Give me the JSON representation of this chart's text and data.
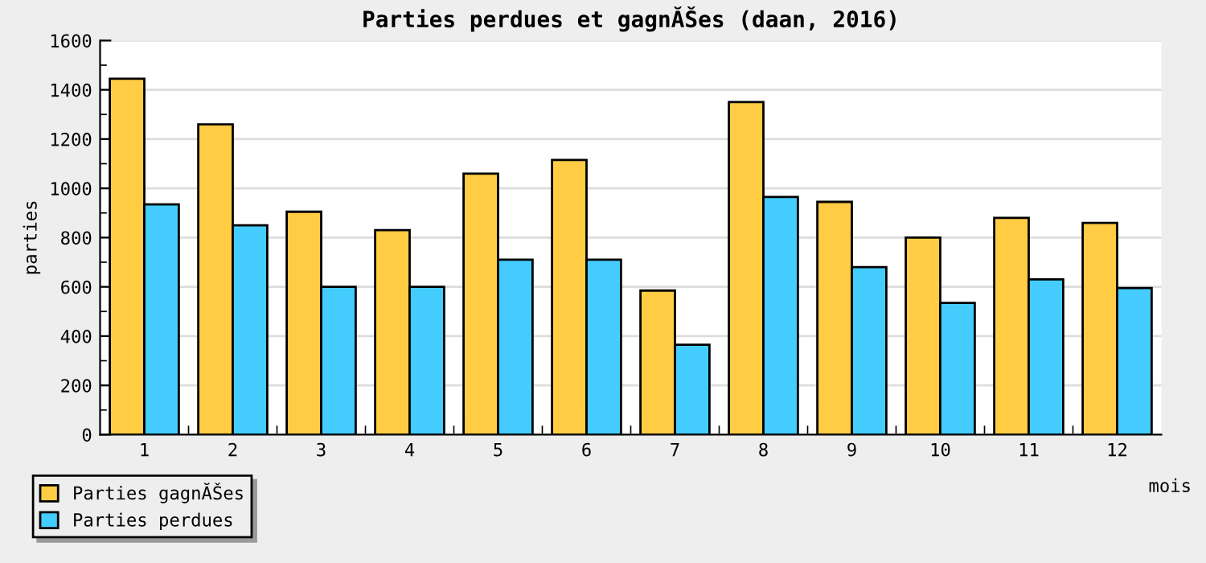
{
  "chart_data": {
    "type": "bar",
    "title": "Parties perdues et gagnĂŠes (daan, 2016)",
    "xlabel": "mois",
    "ylabel": "parties",
    "categories": [
      "1",
      "2",
      "3",
      "4",
      "5",
      "6",
      "7",
      "8",
      "9",
      "10",
      "11",
      "12"
    ],
    "series": [
      {
        "name": "Parties gagnĂŠes",
        "color": "#ffcc44",
        "values": [
          1445,
          1260,
          905,
          830,
          1060,
          1115,
          585,
          1350,
          945,
          800,
          880,
          860
        ]
      },
      {
        "name": "Parties perdues",
        "color": "#44ccff",
        "values": [
          935,
          850,
          600,
          600,
          710,
          710,
          365,
          965,
          680,
          535,
          630,
          595
        ]
      }
    ],
    "ylim": [
      0,
      1600
    ],
    "yticks": [
      0,
      200,
      400,
      600,
      800,
      1000,
      1200,
      1400,
      1600
    ],
    "grid": "y",
    "legend": "bottom left"
  }
}
